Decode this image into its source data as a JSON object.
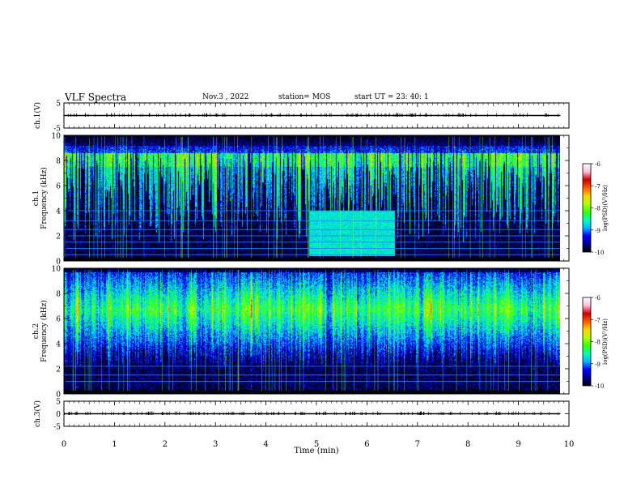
{
  "header": {
    "title": "VLF Spectra",
    "date": "Nov.3 , 2022",
    "station": "station= MOS",
    "start": "start UT = 23: 40: 1"
  },
  "chart_data": [
    {
      "type": "line",
      "panel": "ch1-waveform",
      "ylabel": "ch.1(V)",
      "ylim": [
        -5,
        5
      ],
      "yticks": [
        "5",
        "-5"
      ],
      "xlim": [
        0,
        10
      ],
      "series": [
        {
          "x_range": [
            0,
            9.83
          ],
          "value": 0
        }
      ]
    },
    {
      "type": "heatmap",
      "panel": "ch1-spectrogram",
      "ylabel": "Frequency (kHz)",
      "channel_label": "ch.1",
      "ylim": [
        0,
        10
      ],
      "yticks": [
        "0",
        "2",
        "4",
        "6",
        "8",
        "10"
      ],
      "xlim": [
        0,
        10
      ],
      "data_end_min": 9.83,
      "colorbar": {
        "label": "log(PSD)(V²/Hz)",
        "range": [
          -10,
          -6
        ],
        "ticks": [
          "-6",
          "-7",
          "-8",
          "-9",
          "-10"
        ]
      },
      "features": {
        "broadband_band_kHz": [
          0.5,
          10
        ],
        "enhanced_block": {
          "t_min": [
            4.85,
            6.55
          ],
          "f_kHz": [
            0.4,
            4.0
          ]
        },
        "horizontal_lines_kHz": [
          0.5,
          1.0,
          1.5,
          2.0,
          2.5,
          3.2,
          4.0
        ]
      }
    },
    {
      "type": "heatmap",
      "panel": "ch2-spectrogram",
      "ylabel": "Frequency (kHz)",
      "channel_label": "ch.2",
      "ylim": [
        0,
        10
      ],
      "yticks": [
        "0",
        "2",
        "4",
        "6",
        "8",
        "10"
      ],
      "xlim": [
        0,
        10
      ],
      "data_end_min": 9.83,
      "colorbar": {
        "label": "log(PSD)(V²/Hz)",
        "range": [
          -10,
          -6
        ],
        "ticks": [
          "-6",
          "-7",
          "-8",
          "-9",
          "-10"
        ]
      },
      "features": {
        "peak_band_kHz": [
          5.5,
          8.0
        ],
        "horizontal_lines_kHz": [
          1.0,
          1.5,
          2.2
        ]
      }
    },
    {
      "type": "line",
      "panel": "ch3-waveform",
      "ylabel": "ch.3(V)",
      "ylim": [
        -5,
        5
      ],
      "yticks": [
        "5",
        "0",
        "-5"
      ],
      "xlim": [
        0,
        10
      ],
      "series": [
        {
          "x_range": [
            0,
            9.83
          ],
          "value": 0
        }
      ]
    }
  ],
  "xaxis": {
    "label": "Time (min)",
    "ticks": [
      "0",
      "1",
      "2",
      "3",
      "4",
      "5",
      "6",
      "7",
      "8",
      "9",
      "10"
    ]
  },
  "colors": {
    "cmap": [
      "#000000",
      "#00008c",
      "#0000ff",
      "#00b4ff",
      "#00ffb4",
      "#3cff00",
      "#b4ff00",
      "#ffd200",
      "#ff5a00",
      "#c80000",
      "#ffbedc",
      "#ffffff"
    ]
  }
}
